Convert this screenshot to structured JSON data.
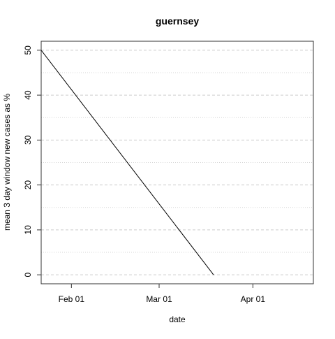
{
  "chart_data": {
    "type": "line",
    "title": "guernsey",
    "xlabel": "date",
    "ylabel": "mean  3  day window new cases as %",
    "x_ticks": [
      {
        "label": "Feb 01",
        "date": "2020-02-01"
      },
      {
        "label": "Mar 01",
        "date": "2020-03-01"
      },
      {
        "label": "Apr 01",
        "date": "2020-04-01"
      }
    ],
    "y_ticks": [
      0,
      10,
      20,
      30,
      40,
      50
    ],
    "xlim": [
      "2020-01-22",
      "2020-04-21"
    ],
    "ylim": [
      -2,
      52
    ],
    "grid": {
      "major_dashed": [
        0,
        10,
        20,
        30,
        40,
        50
      ],
      "minor_dotted": [
        5,
        15,
        25,
        35,
        45
      ]
    },
    "series": [
      {
        "color": "#000000",
        "x": [
          "2020-01-22",
          "2020-01-22",
          "2020-03-19",
          "2020-03-19"
        ],
        "y": [
          0,
          50,
          0,
          0
        ]
      }
    ]
  }
}
